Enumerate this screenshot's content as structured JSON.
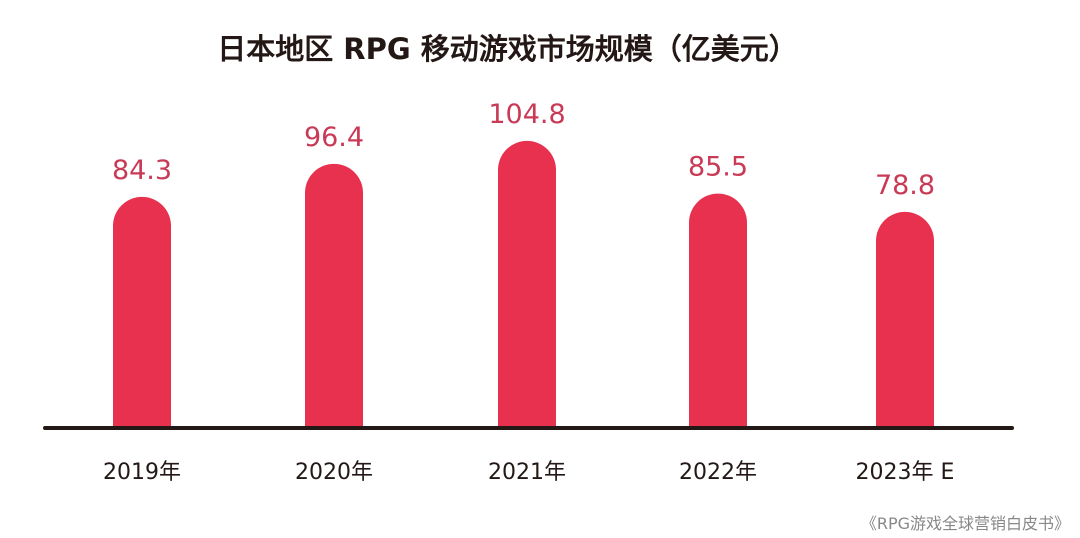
{
  "chart_data": {
    "type": "bar",
    "title": "日本地区 RPG 移动游戏市场规模（亿美元）",
    "categories": [
      "2019年",
      "2020年",
      "2021年",
      "2022年",
      "2023年 E"
    ],
    "values": [
      84.3,
      96.4,
      104.8,
      85.5,
      78.8
    ],
    "data_labels": [
      "84.3",
      "96.4",
      "104.8",
      "85.5",
      "78.8"
    ],
    "xlabel": "",
    "ylabel": "",
    "ylim": [
      0,
      110
    ],
    "grid": false,
    "colors": {
      "bar": "#e8304f",
      "label": "#c83a55",
      "axis": "#231815",
      "text": "#231815"
    }
  },
  "source": "《RPG游戏全球营销白皮书》"
}
